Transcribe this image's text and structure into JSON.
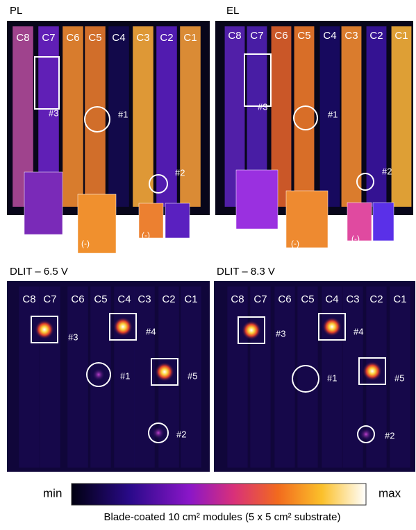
{
  "panels": [
    {
      "title": "PL",
      "columns": [
        "C8",
        "C7",
        "C6",
        "C5",
        "C4",
        "C3",
        "C2",
        "C1"
      ],
      "markers": [
        "#3",
        "#1",
        "#2"
      ],
      "insets": [
        "(-)",
        "(-)"
      ]
    },
    {
      "title": "EL",
      "columns": [
        "C8",
        "C7",
        "C6",
        "C5",
        "C4",
        "C3",
        "C2",
        "C1"
      ],
      "markers": [
        "#3",
        "#1",
        "#2"
      ],
      "insets": [
        "(-)",
        "(-)"
      ]
    },
    {
      "title": "DLIT – 6.5 V",
      "columns": [
        "C8",
        "C7",
        "C6",
        "C5",
        "C4",
        "C3",
        "C2",
        "C1"
      ],
      "markers": [
        "#3",
        "#4",
        "#1",
        "#5",
        "#2"
      ]
    },
    {
      "title": "DLIT – 8.3 V",
      "columns": [
        "C8",
        "C7",
        "C6",
        "C5",
        "C4",
        "C3",
        "C2",
        "C1"
      ],
      "markers": [
        "#3",
        "#4",
        "#1",
        "#5",
        "#2"
      ]
    }
  ],
  "colorbar": {
    "min_label": "min",
    "max_label": "max"
  },
  "caption": "Blade-coated 10 cm² modules (5 x 5 cm² substrate)"
}
